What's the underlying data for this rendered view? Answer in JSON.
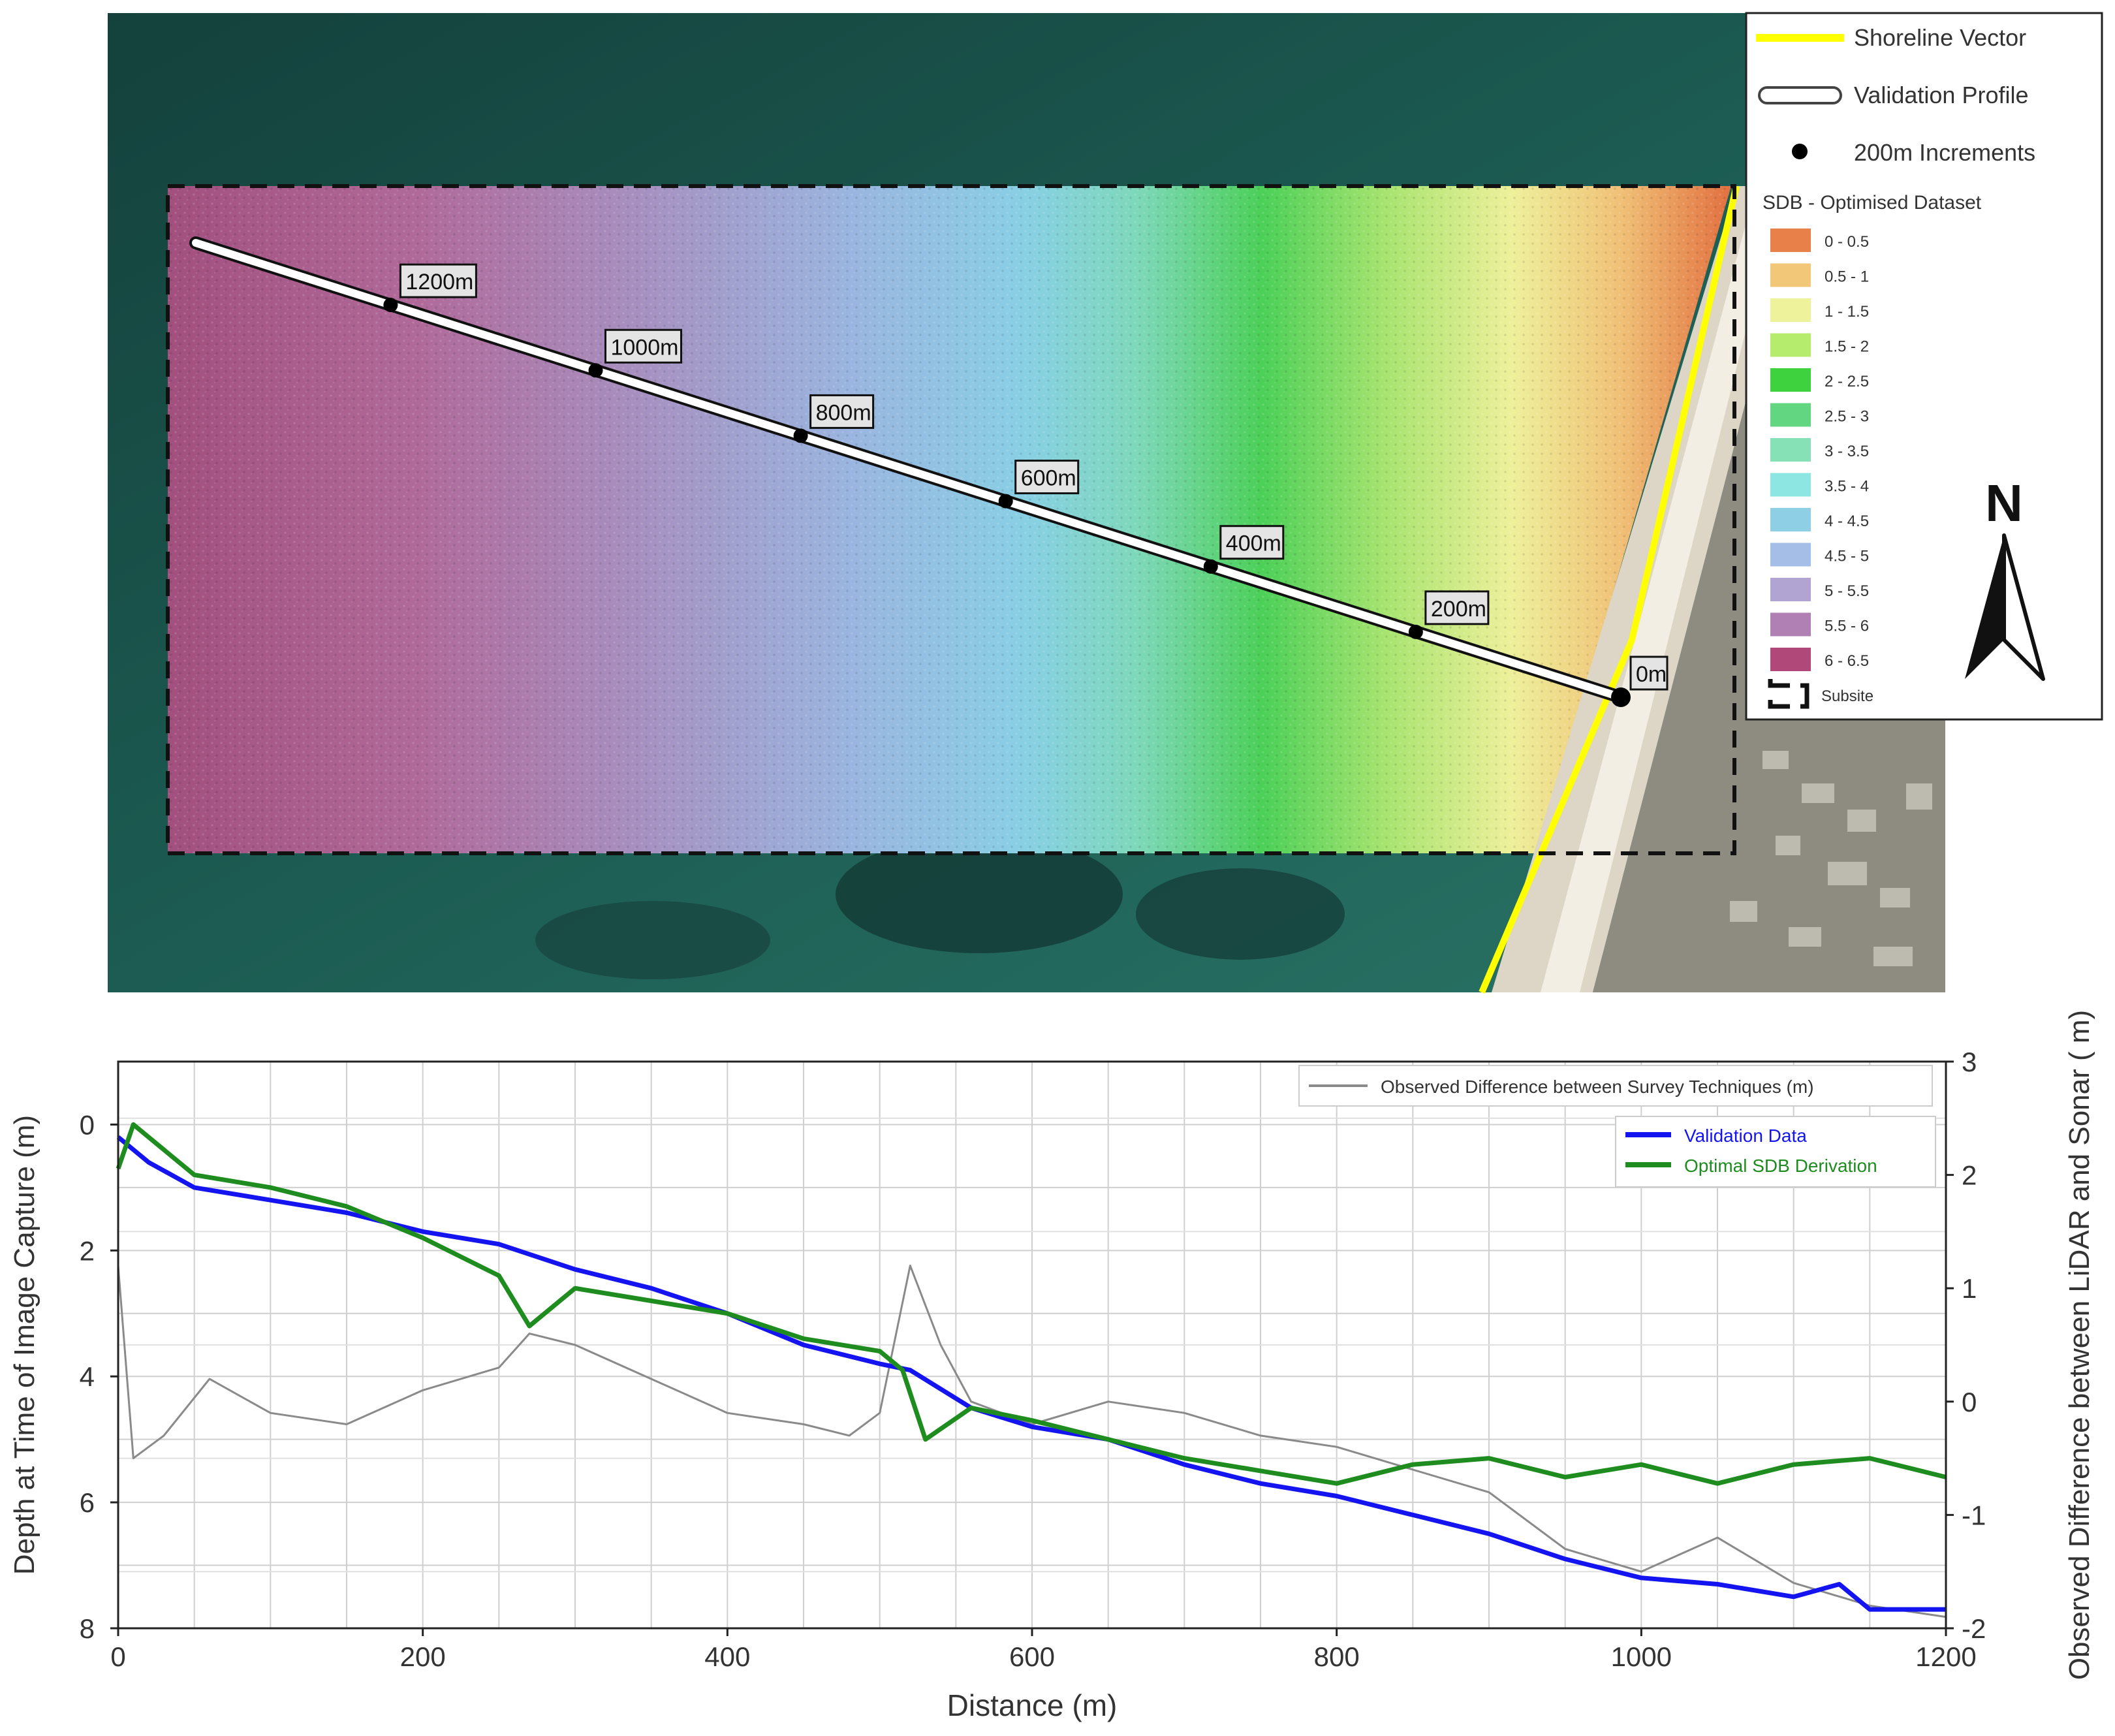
{
  "map": {
    "profile_markers": [
      {
        "label": "1200m"
      },
      {
        "label": "1000m"
      },
      {
        "label": "800m"
      },
      {
        "label": "600m"
      },
      {
        "label": "400m"
      },
      {
        "label": "200m"
      },
      {
        "label": "0m"
      }
    ],
    "north_label": "N",
    "north_icon": "north-arrow-icon",
    "legend": {
      "shoreline_label": "Shoreline Vector",
      "profile_label": "Validation Profile",
      "increments_label": "200m Increments",
      "dataset_title": "SDB - Optimised Dataset",
      "extent_label": "Subsite",
      "classes": [
        {
          "label": "0 - 0.5",
          "color": "#e8804a"
        },
        {
          "label": "0.5 - 1",
          "color": "#f2c878"
        },
        {
          "label": "1 - 1.5",
          "color": "#eef29a"
        },
        {
          "label": "1.5 - 2",
          "color": "#b6ec6e"
        },
        {
          "label": "2 - 2.5",
          "color": "#3ed23e"
        },
        {
          "label": "2.5 - 3",
          "color": "#62d680"
        },
        {
          "label": "3 - 3.5",
          "color": "#86e2b6"
        },
        {
          "label": "3.5 - 4",
          "color": "#8ee6e2"
        },
        {
          "label": "4 - 4.5",
          "color": "#8ecfe6"
        },
        {
          "label": "4.5 - 5",
          "color": "#a4bee8"
        },
        {
          "label": "5 - 5.5",
          "color": "#b2a4d2"
        },
        {
          "label": "5.5 - 6",
          "color": "#b080b4"
        },
        {
          "label": "6 - 6.5",
          "color": "#b0487a"
        }
      ],
      "colors": {
        "shoreline": "#ffff00",
        "increment": "#000000"
      }
    }
  },
  "chart_data": {
    "type": "line",
    "xlabel": "Distance (m)",
    "ylabel_left": "Depth at Time of Image Capture (m)",
    "ylabel_right": "Observed Difference between LiDAR and Sonar ( m)",
    "xlim": [
      0,
      1200
    ],
    "ylim_left": [
      8,
      -1
    ],
    "ylim_right": [
      -2,
      3
    ],
    "x_ticks": [
      "0",
      "200",
      "400",
      "600",
      "800",
      "1000",
      "1200"
    ],
    "y_left_ticks": [
      "0",
      "2",
      "4",
      "6",
      "8"
    ],
    "y_right_ticks": [
      "3",
      "2",
      "1",
      "0",
      "-1",
      "-2"
    ],
    "grid": true,
    "legend_top": "Observed Difference between Survey Techniques (m)",
    "legend_main": [
      "Validation Data",
      "Optimal SDB Derivation"
    ],
    "series": [
      {
        "name": "Validation Data",
        "axis": "left",
        "color": "#1414f0",
        "x": [
          0,
          20,
          50,
          100,
          150,
          200,
          250,
          300,
          350,
          400,
          450,
          500,
          520,
          560,
          600,
          650,
          700,
          750,
          800,
          850,
          900,
          950,
          1000,
          1050,
          1100,
          1130,
          1150,
          1200
        ],
        "y": [
          0.2,
          0.6,
          1.0,
          1.2,
          1.4,
          1.7,
          1.9,
          2.3,
          2.6,
          3.0,
          3.5,
          3.8,
          3.9,
          4.5,
          4.8,
          5.0,
          5.4,
          5.7,
          5.9,
          6.2,
          6.5,
          6.9,
          7.2,
          7.3,
          7.5,
          7.3,
          7.7,
          7.7
        ]
      },
      {
        "name": "Optimal SDB Derivation",
        "axis": "left",
        "color": "#1e8c1e",
        "x": [
          0,
          10,
          30,
          50,
          100,
          150,
          200,
          250,
          270,
          300,
          350,
          400,
          450,
          500,
          515,
          530,
          560,
          600,
          650,
          700,
          750,
          800,
          850,
          900,
          950,
          1000,
          1050,
          1100,
          1150,
          1200
        ],
        "y": [
          0.7,
          0.0,
          0.4,
          0.8,
          1.0,
          1.3,
          1.8,
          2.4,
          3.2,
          2.6,
          2.8,
          3.0,
          3.4,
          3.6,
          3.9,
          5.0,
          4.5,
          4.7,
          5.0,
          5.3,
          5.5,
          5.7,
          5.4,
          5.3,
          5.6,
          5.4,
          5.7,
          5.4,
          5.3,
          5.6
        ]
      },
      {
        "name": "Observed Difference between Survey Techniques (m)",
        "axis": "right",
        "color": "#8a8a8a",
        "x": [
          0,
          10,
          30,
          60,
          100,
          150,
          200,
          250,
          270,
          300,
          350,
          400,
          450,
          480,
          500,
          520,
          540,
          560,
          600,
          650,
          700,
          750,
          800,
          850,
          900,
          950,
          1000,
          1050,
          1100,
          1150,
          1200
        ],
        "y": [
          1.2,
          -0.5,
          -0.3,
          0.2,
          -0.1,
          -0.2,
          0.1,
          0.3,
          0.6,
          0.5,
          0.2,
          -0.1,
          -0.2,
          -0.3,
          -0.1,
          1.2,
          0.5,
          0.0,
          -0.2,
          0.0,
          -0.1,
          -0.3,
          -0.4,
          -0.6,
          -0.8,
          -1.3,
          -1.5,
          -1.2,
          -1.6,
          -1.8,
          -1.9
        ]
      }
    ]
  }
}
